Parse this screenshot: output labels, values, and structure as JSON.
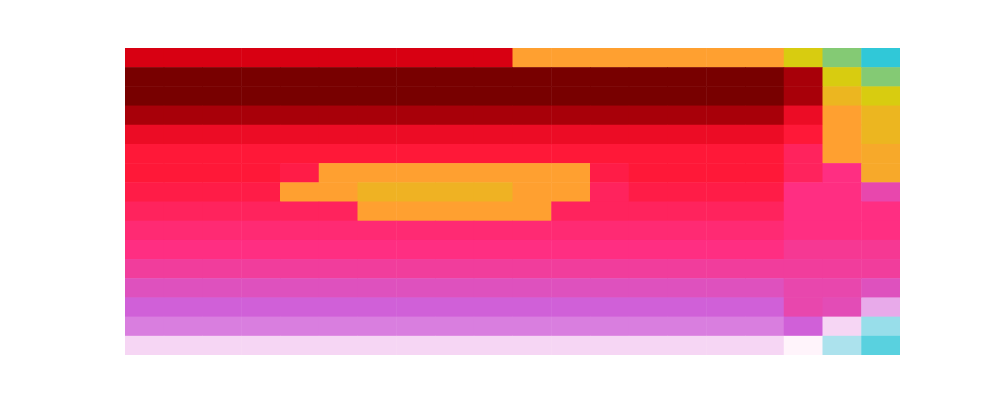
{
  "chart_data": {
    "type": "heatmap",
    "tick_labels": false,
    "z": [
      [
        1,
        1,
        1,
        1,
        1,
        1,
        1,
        1,
        1,
        1,
        8,
        8,
        8,
        8,
        8,
        8,
        8,
        7,
        6.5,
        6
      ],
      [
        0,
        0,
        0,
        0,
        0,
        0,
        0,
        0,
        0,
        0,
        0,
        0,
        0,
        0,
        0,
        0,
        0,
        0.5,
        7,
        6.5
      ],
      [
        0,
        0,
        0,
        0,
        0,
        0,
        0,
        0,
        0,
        0,
        0,
        0,
        0,
        0,
        0,
        0,
        0,
        0.5,
        7.5,
        7
      ],
      [
        0.5,
        0.5,
        0.5,
        0.5,
        0.5,
        0.5,
        0.5,
        0.5,
        0.5,
        0.5,
        0.5,
        0.5,
        0.5,
        0.5,
        0.5,
        0.5,
        0.5,
        1.5,
        8,
        7.5
      ],
      [
        1.5,
        1.5,
        1.5,
        1.5,
        1.5,
        1.5,
        1.5,
        1.5,
        1.5,
        1.5,
        1.5,
        1.5,
        1.5,
        1.5,
        1.5,
        1.5,
        1.5,
        2,
        8,
        7.5
      ],
      [
        2,
        2,
        2,
        2,
        2,
        2,
        2,
        2,
        2,
        2,
        2,
        2,
        2,
        2,
        2,
        2,
        2,
        2.5,
        8,
        7.8
      ],
      [
        2,
        2,
        2,
        2,
        2.2,
        8,
        8,
        8,
        8,
        8,
        8,
        8,
        2.2,
        2,
        2,
        2,
        2,
        2.5,
        3,
        7.8
      ],
      [
        2.2,
        2.2,
        2.2,
        2.2,
        8,
        8,
        7.6,
        7.6,
        7.6,
        7.6,
        8,
        8,
        2.5,
        2.2,
        2.2,
        2.2,
        2.2,
        3,
        3,
        3.5
      ],
      [
        2.5,
        2.5,
        2.5,
        2.5,
        2.5,
        2.5,
        8,
        8,
        8,
        8,
        8,
        2.5,
        2.5,
        2.5,
        2.5,
        2.5,
        2.5,
        3,
        3,
        3
      ],
      [
        2.8,
        2.8,
        2.8,
        2.8,
        2.8,
        2.8,
        2.8,
        2.8,
        2.8,
        2.8,
        2.8,
        2.8,
        2.8,
        2.8,
        2.8,
        2.8,
        2.8,
        3,
        3,
        3
      ],
      [
        3,
        3,
        3,
        3,
        3,
        3,
        3,
        3,
        3,
        3,
        3,
        3,
        3,
        3,
        3,
        3,
        3,
        3.2,
        3.2,
        3.2
      ],
      [
        3.3,
        3.3,
        3.3,
        3.3,
        3.3,
        3.3,
        3.3,
        3.3,
        3.3,
        3.3,
        3.3,
        3.3,
        3.3,
        3.3,
        3.3,
        3.3,
        3.3,
        3.3,
        3.3,
        3.3
      ],
      [
        3.7,
        3.7,
        3.7,
        3.7,
        3.7,
        3.7,
        3.7,
        3.7,
        3.7,
        3.7,
        3.7,
        3.7,
        3.7,
        3.7,
        3.7,
        3.7,
        3.7,
        3.5,
        3.5,
        3.7
      ],
      [
        4,
        4,
        4,
        4,
        4,
        4,
        4,
        4,
        4,
        4,
        4,
        4,
        4,
        4,
        4,
        4,
        4,
        3.5,
        3.6,
        4.5
      ],
      [
        4.2,
        4.2,
        4.2,
        4.2,
        4.2,
        4.2,
        4.2,
        4.2,
        4.2,
        4.2,
        4.2,
        4.2,
        4.2,
        4.2,
        4.2,
        4.2,
        4.2,
        4,
        4.8,
        5.5
      ],
      [
        4.8,
        4.8,
        4.8,
        4.8,
        4.8,
        4.8,
        4.8,
        4.8,
        4.8,
        4.8,
        4.8,
        4.8,
        4.8,
        4.8,
        4.8,
        4.8,
        4.8,
        5,
        5.4,
        5.8
      ]
    ]
  }
}
